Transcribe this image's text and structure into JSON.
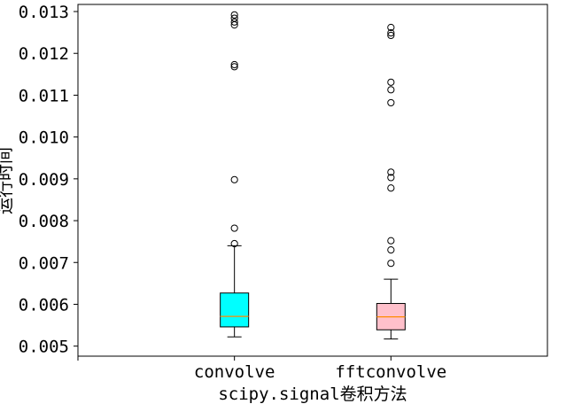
{
  "chart_data": {
    "type": "boxplot",
    "title": "",
    "xlabel": "scipy.signal卷积方法",
    "ylabel": "运行时间",
    "ylim": [
      0.00476,
      0.01317
    ],
    "yticks": [
      "0.005",
      "0.006",
      "0.007",
      "0.008",
      "0.009",
      "0.010",
      "0.011",
      "0.012",
      "0.013"
    ],
    "categories": [
      "convolve",
      "fftconvolve"
    ],
    "grid": false,
    "boxes": [
      {
        "category": "convolve",
        "color": "#00ffff",
        "whisker_low": 0.00522,
        "q1": 0.00546,
        "median": 0.00571,
        "q3": 0.00627,
        "whisker_high": 0.0074,
        "outliers": [
          0.00745,
          0.00782,
          0.00898,
          0.01168,
          0.01173,
          0.01268,
          0.01275,
          0.01284,
          0.01292
        ]
      },
      {
        "category": "fftconvolve",
        "color": "#ffc0cb",
        "whisker_low": 0.00517,
        "q1": 0.00539,
        "median": 0.0057,
        "q3": 0.00602,
        "whisker_high": 0.0066,
        "outliers": [
          0.00698,
          0.0073,
          0.00752,
          0.00878,
          0.00903,
          0.00916,
          0.01082,
          0.01113,
          0.01131,
          0.01243,
          0.01249,
          0.01262
        ]
      }
    ],
    "median_color": "#ff8c00"
  }
}
